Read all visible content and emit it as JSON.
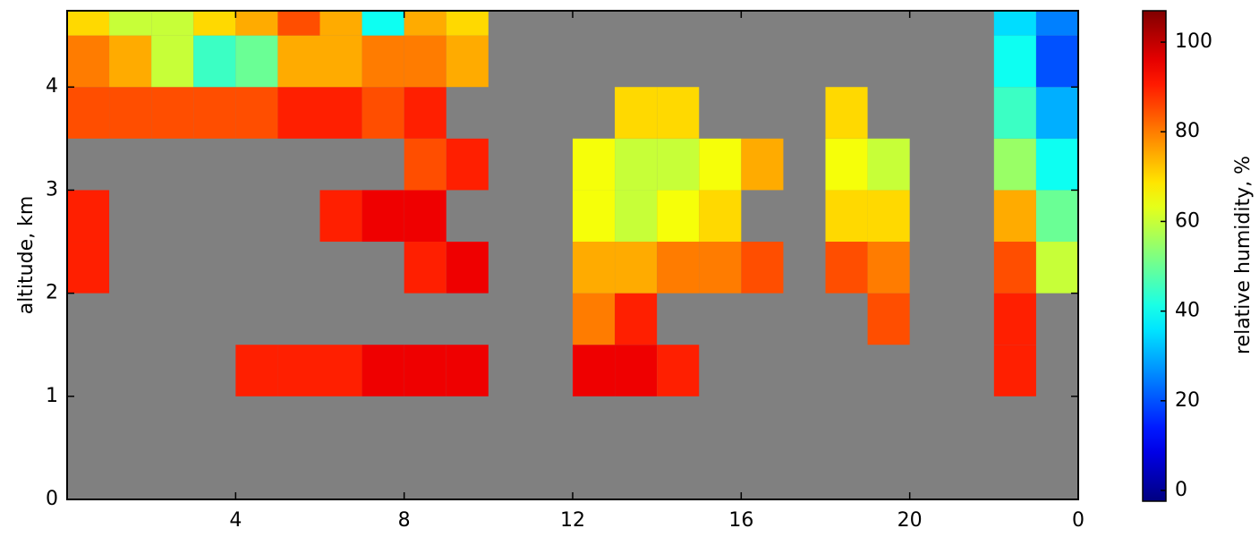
{
  "chart_data": {
    "type": "heatmap",
    "ylabel": "altitude, km",
    "colorbar_label": "relative humidity, %",
    "xbins": [
      0,
      1,
      2,
      3,
      4,
      5,
      6,
      7,
      8,
      9,
      10,
      11,
      12,
      13,
      14,
      15,
      16,
      17,
      18,
      19,
      20,
      21,
      22,
      23,
      24
    ],
    "ybins": [
      0,
      0.5,
      1,
      1.5,
      2,
      2.5,
      3,
      3.5,
      4,
      4.5,
      4.74
    ],
    "xlim": [
      0,
      24
    ],
    "ylim": [
      0,
      4.74
    ],
    "xticks": [
      4,
      8,
      12,
      16,
      20,
      {
        "value": 24,
        "label": "0"
      }
    ],
    "yticks": [
      0,
      1,
      2,
      3,
      4
    ],
    "clim": [
      -2.4,
      107
    ],
    "cticks": [
      0,
      20,
      40,
      60,
      80,
      100
    ],
    "colormap": "jet",
    "background": "#808080",
    "z": [
      [
        null,
        null,
        null,
        null,
        null,
        null,
        null,
        null,
        null,
        null,
        null,
        null,
        null,
        null,
        null,
        null,
        null,
        null,
        null,
        null,
        null,
        null,
        null,
        null
      ],
      [
        null,
        null,
        null,
        null,
        null,
        null,
        null,
        null,
        null,
        null,
        null,
        null,
        null,
        null,
        null,
        null,
        null,
        null,
        null,
        null,
        null,
        null,
        null,
        null
      ],
      [
        null,
        null,
        null,
        null,
        90,
        90,
        90,
        95,
        95,
        95,
        null,
        null,
        95,
        95,
        90,
        null,
        null,
        null,
        null,
        null,
        null,
        null,
        90,
        null
      ],
      [
        null,
        null,
        null,
        null,
        null,
        null,
        null,
        null,
        null,
        null,
        null,
        null,
        80,
        90,
        null,
        null,
        null,
        null,
        null,
        85,
        null,
        null,
        90,
        null
      ],
      [
        90,
        null,
        null,
        null,
        null,
        null,
        null,
        null,
        90,
        95,
        null,
        null,
        75,
        75,
        80,
        80,
        85,
        null,
        85,
        80,
        null,
        null,
        85,
        60
      ],
      [
        90,
        null,
        null,
        null,
        null,
        null,
        90,
        95,
        95,
        null,
        null,
        null,
        65,
        60,
        65,
        70,
        null,
        null,
        70,
        70,
        null,
        null,
        75,
        50
      ],
      [
        null,
        null,
        null,
        null,
        null,
        null,
        null,
        null,
        85,
        90,
        null,
        null,
        65,
        60,
        60,
        65,
        75,
        null,
        65,
        60,
        null,
        null,
        55,
        40
      ],
      [
        85,
        85,
        85,
        85,
        85,
        90,
        90,
        85,
        90,
        null,
        null,
        null,
        null,
        70,
        70,
        null,
        null,
        null,
        70,
        null,
        null,
        null,
        45,
        30
      ],
      [
        80,
        75,
        60,
        45,
        50,
        75,
        75,
        80,
        80,
        75,
        null,
        null,
        null,
        null,
        null,
        null,
        null,
        null,
        null,
        null,
        null,
        null,
        40,
        20
      ],
      [
        70,
        60,
        60,
        70,
        75,
        85,
        75,
        40,
        75,
        70,
        null,
        null,
        null,
        null,
        null,
        null,
        null,
        null,
        null,
        null,
        null,
        null,
        35,
        25
      ]
    ]
  }
}
